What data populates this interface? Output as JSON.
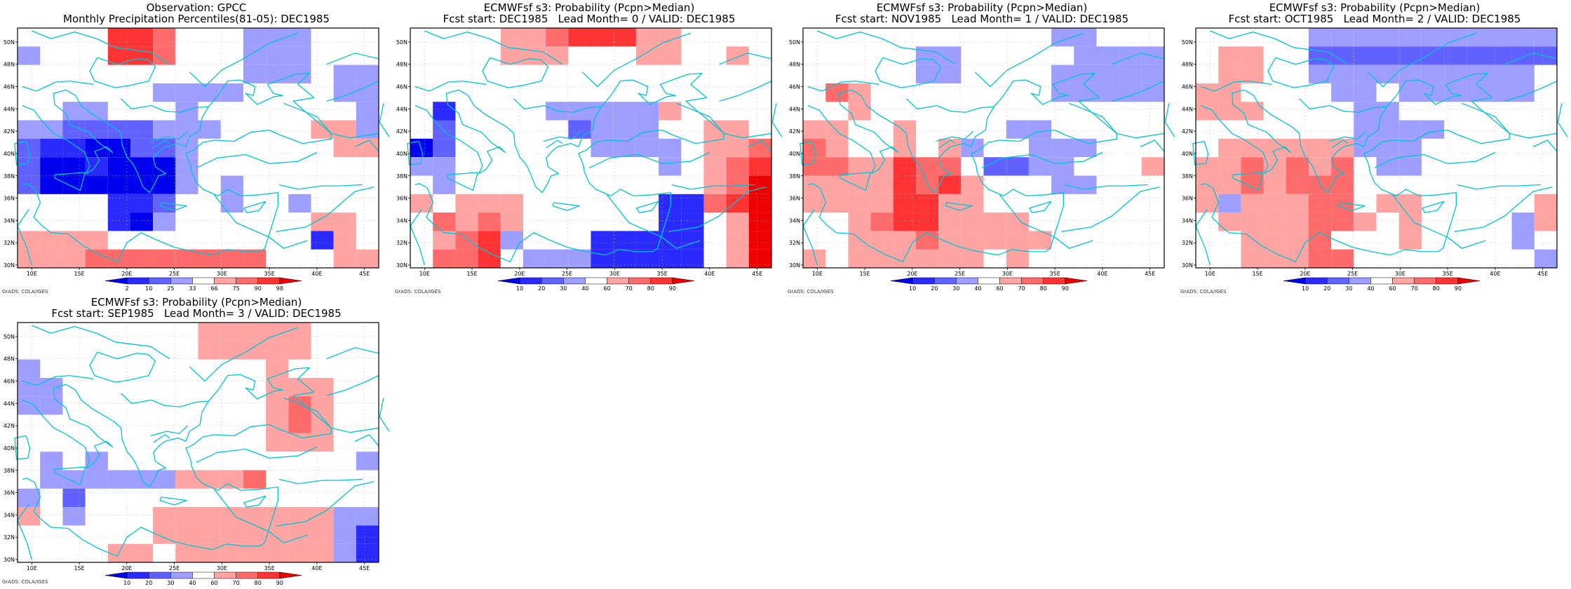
{
  "panels": [
    {
      "id": "obs",
      "title_line1": "Observation: GPCC",
      "title_line2": "Monthly Precipitation Percentiles(81-05): DEC1985",
      "colorbar_labels": [
        "2",
        "10",
        "25",
        "33",
        "66",
        "75",
        "90",
        "98"
      ],
      "credit": "GrADS: COLA/IGES"
    },
    {
      "id": "lead0",
      "title_line1": "ECMWFsf s3: Probability (Pcpn>Median)",
      "title_line2": "Fcst start: DEC1985   Lead Month= 0 / VALID: DEC1985",
      "colorbar_labels": [
        "10",
        "20",
        "30",
        "40",
        "60",
        "70",
        "80",
        "90"
      ],
      "credit": "GrADS: COLA/IGES"
    },
    {
      "id": "lead1",
      "title_line1": "ECMWFsf s3: Probability (Pcpn>Median)",
      "title_line2": "Fcst start: NOV1985   Lead Month= 1 / VALID: DEC1985",
      "colorbar_labels": [
        "10",
        "20",
        "30",
        "40",
        "60",
        "70",
        "80",
        "90"
      ],
      "credit": "GrADS: COLA/IGES"
    },
    {
      "id": "lead2",
      "title_line1": "ECMWFsf s3: Probability (Pcpn>Median)",
      "title_line2": "Fcst start: OCT1985   Lead Month= 2 / VALID: DEC1985",
      "colorbar_labels": [
        "10",
        "20",
        "30",
        "40",
        "60",
        "70",
        "80",
        "90"
      ],
      "credit": "GrADS: COLA/IGES"
    },
    {
      "id": "lead3",
      "title_line1": "ECMWFsf s3: Probability (Pcpn>Median)",
      "title_line2": "Fcst start: SEP1985   Lead Month= 3 / VALID: DEC1985",
      "colorbar_labels": [
        "10",
        "20",
        "30",
        "40",
        "60",
        "70",
        "80",
        "90"
      ],
      "credit": "GrADS: COLA/IGES"
    }
  ],
  "axes": {
    "lon_ticks": [
      "10E",
      "15E",
      "20E",
      "25E",
      "30E",
      "35E",
      "40E",
      "45E"
    ],
    "lat_ticks": [
      "30N",
      "32N",
      "34N",
      "36N",
      "38N",
      "40N",
      "42N",
      "44N",
      "46N",
      "48N",
      "50N"
    ],
    "lon_range": [
      8.5,
      46.5
    ],
    "lat_range": [
      29.75,
      51.25
    ]
  },
  "colors": {
    "scale": [
      "#0000ee",
      "#2a2aff",
      "#6161ff",
      "#9e9eff",
      "#ffffff",
      "#ffa3a3",
      "#ff6a6a",
      "#ff3333",
      "#ee0000"
    ],
    "coastline": "#00c5cf",
    "grid": "#b8b8b8"
  },
  "grids": {
    "legend": "0=strong blue,1=blue,2=mid blue,3=light blue,4=white,5=light red,6=mid red,7=red,8=strong red; rows from 50N to 30N, 2.5deg cells from 8.75E",
    "obs": [
      "4444776444333444",
      "3444776444333444",
      "4444444444333433",
      "4444443333444433",
      "4433444344444443",
      "3322223334444553",
      "2110022344444455",
      "2001000344444444",
      "2000000343444444",
      "4444112443443444",
      "4444103444444554",
      "5555444444444154",
      "5556666666644455"
    ],
    "lead0": [
      "4444556777554444",
      "4444555444554454",
      "4444444444444444",
      "4444444444444444",
      "4144443333354444",
      "4244444233344554",
      "0244444433334556",
      "3344444444434567",
      "4344444444444568",
      "5455544444411678",
      "4656544444411458",
      "4567344411111458",
      "4667433311111458"
    ],
    "lead1": [
      "4444444444433444",
      "4444433444443333",
      "4444433444433333",
      "4654444444433333",
      "4454444444444444",
      "5544544443344444",
      "6544545344333444",
      "6655766422334445",
      "5555767544433444",
      "5555775544444444",
      "4456775555444444",
      "4455565555544444",
      "5455555545444444"
    ],
    "lead2": [
      "4444433333333333",
      "4554422222222222",
      "4554433333333334",
      "5544443343333334",
      "5554444334444444",
      "4444444333344444",
      "4555555333444444",
      "5565656433444444",
      "5565666444444444",
      "5355566455444445",
      "4555566545444435",
      "4455564445444434",
      "4455566444444443"
    ],
    "lead3": [
      "4444444455555444",
      "4444444455555444",
      "3444444444454444",
      "3344444444455544",
      "3344444444456544",
      "4444444444456544",
      "4444444444455544",
      "4343444444444443",
      "4333333555644444",
      "3424444444444444",
      "5434445555555533",
      "4444445555555531",
      "4444554555555531"
    ]
  }
}
